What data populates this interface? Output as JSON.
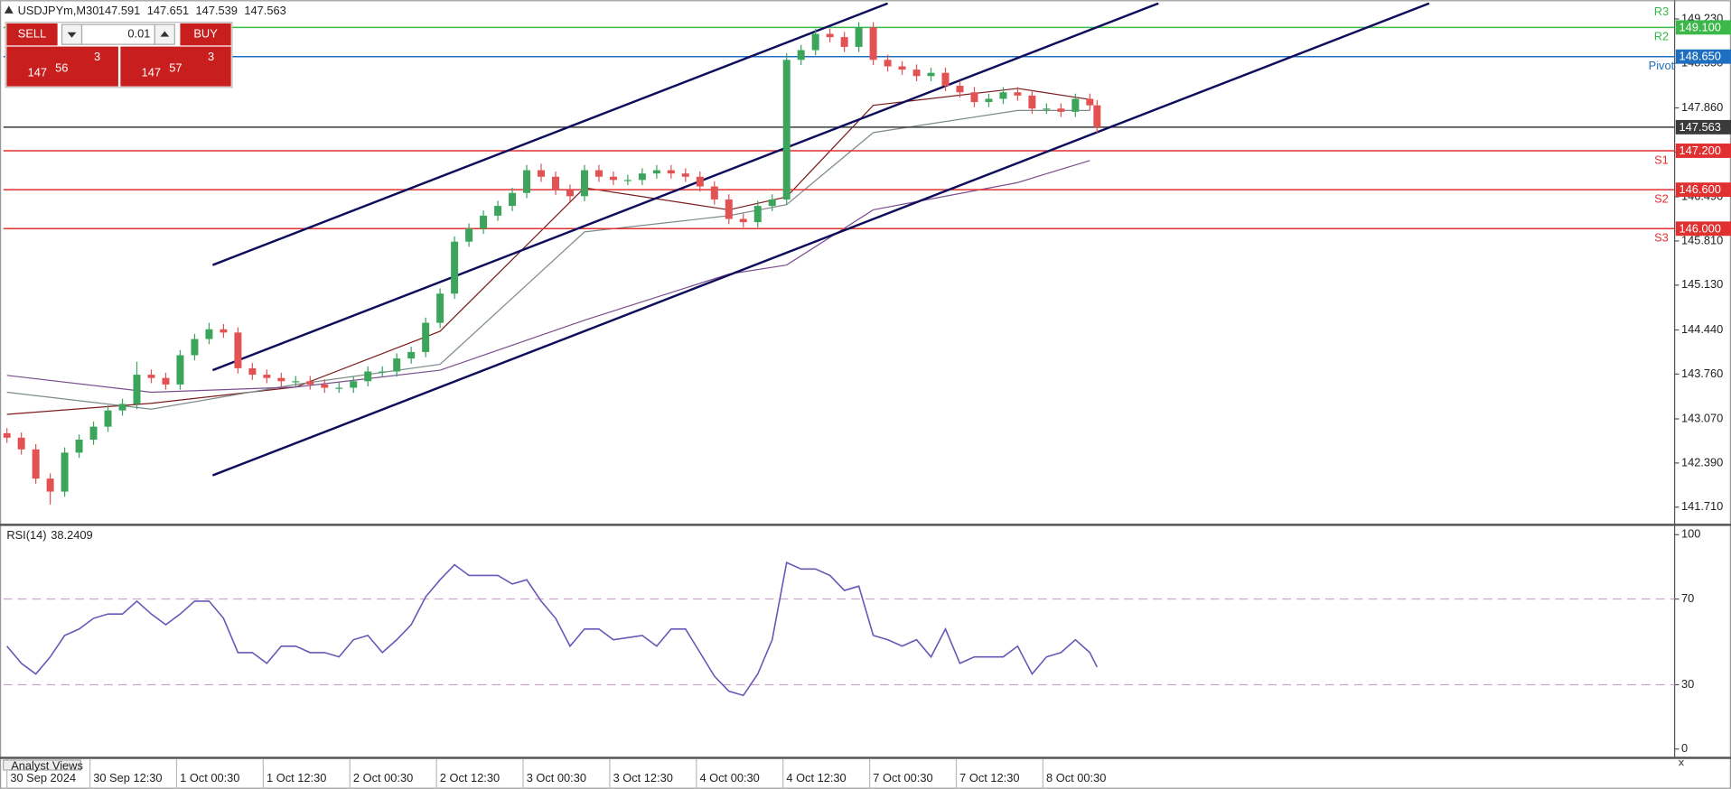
{
  "trade_panel": {
    "sell": "SELL",
    "buy": "BUY",
    "lot": "0.01",
    "sell_price": [
      "147",
      "56",
      "3"
    ],
    "buy_price": [
      "147",
      "57",
      "3"
    ]
  },
  "bottom_tab": "Analyst Views",
  "chart_data": [
    {
      "type": "candlestick",
      "title": "USDJPYm,M30",
      "readout": [
        147.591,
        147.651,
        147.539,
        147.563
      ],
      "up_color": "#3aa55b",
      "down_color": "#e25252",
      "grid": false,
      "x": [
        0,
        4,
        8,
        12,
        16,
        20,
        24,
        28,
        32,
        36,
        40,
        44,
        48,
        52,
        56,
        60,
        64,
        68,
        72,
        76,
        80,
        84,
        88,
        92,
        96,
        100,
        104,
        108,
        112,
        116,
        120,
        124,
        128,
        132,
        136,
        140,
        144,
        148,
        152,
        156,
        160,
        164,
        168,
        172,
        176,
        180,
        184,
        188,
        192,
        196,
        200,
        204,
        208,
        212,
        216,
        220,
        224,
        228,
        232,
        236,
        240,
        244,
        248,
        252,
        256,
        260,
        264,
        268,
        272,
        276,
        280,
        284,
        288,
        292,
        296,
        300,
        302
      ],
      "open": [
        142.85,
        142.78,
        142.6,
        142.15,
        141.95,
        142.55,
        142.75,
        142.95,
        143.2,
        143.3,
        143.75,
        143.7,
        143.6,
        144.05,
        144.3,
        144.45,
        144.4,
        143.85,
        143.75,
        143.7,
        143.65,
        143.65,
        143.6,
        143.55,
        143.55,
        143.65,
        143.8,
        143.8,
        144.0,
        144.1,
        144.55,
        145.0,
        145.8,
        146.0,
        146.2,
        146.35,
        146.55,
        146.9,
        146.8,
        146.6,
        146.5,
        146.9,
        146.8,
        146.75,
        146.75,
        146.85,
        146.9,
        146.85,
        146.8,
        146.65,
        146.45,
        146.15,
        146.1,
        146.35,
        146.45,
        148.6,
        148.75,
        149.0,
        148.95,
        148.8,
        149.1,
        148.6,
        148.5,
        148.45,
        148.35,
        148.4,
        148.2,
        148.1,
        147.95,
        148.0,
        148.1,
        148.05,
        147.85,
        147.85,
        147.8,
        148.0,
        147.9
      ],
      "high": [
        142.93,
        142.86,
        142.68,
        142.23,
        142.63,
        142.83,
        143.03,
        143.28,
        143.38,
        143.95,
        143.83,
        143.78,
        144.13,
        144.38,
        144.55,
        144.53,
        144.48,
        143.93,
        143.83,
        143.78,
        143.73,
        143.73,
        143.68,
        143.63,
        143.73,
        143.88,
        143.88,
        144.08,
        144.18,
        144.63,
        145.08,
        145.88,
        146.08,
        146.28,
        146.43,
        146.63,
        146.98,
        147.0,
        146.88,
        146.68,
        146.98,
        146.98,
        146.88,
        146.83,
        146.93,
        146.98,
        146.98,
        146.93,
        146.88,
        146.73,
        146.53,
        146.23,
        146.43,
        146.53,
        148.7,
        148.83,
        149.08,
        149.08,
        149.03,
        149.18,
        149.18,
        148.68,
        148.58,
        148.53,
        148.48,
        148.48,
        148.28,
        148.18,
        148.08,
        148.18,
        148.18,
        148.13,
        147.93,
        147.93,
        148.08,
        148.08,
        147.98
      ],
      "low": [
        142.7,
        142.52,
        142.07,
        141.75,
        141.87,
        142.47,
        142.67,
        142.87,
        143.12,
        143.22,
        143.62,
        143.52,
        143.52,
        143.97,
        144.22,
        144.32,
        143.77,
        143.67,
        143.62,
        143.57,
        143.57,
        143.52,
        143.47,
        143.47,
        143.47,
        143.57,
        143.72,
        143.72,
        143.92,
        144.02,
        144.47,
        144.92,
        145.72,
        145.92,
        146.12,
        146.27,
        146.47,
        146.72,
        146.52,
        146.42,
        146.42,
        146.72,
        146.67,
        146.67,
        146.67,
        146.77,
        146.77,
        146.72,
        146.57,
        146.37,
        146.07,
        146.02,
        146.02,
        146.27,
        146.37,
        148.52,
        148.67,
        148.87,
        148.72,
        148.72,
        148.52,
        148.42,
        148.37,
        148.27,
        148.27,
        148.12,
        148.02,
        147.87,
        147.87,
        147.92,
        147.97,
        147.77,
        147.77,
        147.72,
        147.72,
        147.82,
        147.48
      ],
      "close": [
        142.78,
        142.6,
        142.15,
        141.95,
        142.55,
        142.75,
        142.95,
        143.2,
        143.3,
        143.75,
        143.7,
        143.6,
        144.05,
        144.3,
        144.45,
        144.4,
        143.85,
        143.75,
        143.7,
        143.65,
        143.65,
        143.6,
        143.55,
        143.55,
        143.65,
        143.8,
        143.8,
        144.0,
        144.1,
        144.55,
        145.0,
        145.8,
        146.0,
        146.2,
        146.35,
        146.55,
        146.9,
        146.8,
        146.6,
        146.5,
        146.9,
        146.8,
        146.75,
        146.75,
        146.85,
        146.9,
        146.85,
        146.8,
        146.65,
        146.45,
        146.15,
        146.1,
        146.35,
        146.45,
        148.6,
        148.75,
        149.0,
        148.95,
        148.8,
        149.1,
        148.6,
        148.5,
        148.45,
        148.35,
        148.4,
        148.2,
        148.1,
        147.95,
        148.0,
        148.1,
        148.05,
        147.85,
        147.85,
        147.8,
        148.0,
        147.9,
        147.563
      ],
      "ma_x": [
        0,
        40,
        80,
        120,
        160,
        200,
        216,
        240,
        280,
        300
      ],
      "moving_averages": [
        {
          "color": "#7b1c1c",
          "values": [
            143.14,
            143.31,
            143.56,
            144.42,
            146.63,
            146.29,
            146.49,
            147.9,
            148.16,
            147.99
          ]
        },
        {
          "color": "#7d8a8a",
          "values": [
            143.48,
            143.22,
            143.6,
            143.91,
            145.95,
            146.2,
            146.37,
            147.48,
            147.82,
            147.82
          ]
        },
        {
          "color": "#7a4f8f",
          "values": [
            143.74,
            143.48,
            143.56,
            143.82,
            144.59,
            145.3,
            145.44,
            146.29,
            146.71,
            147.05
          ]
        }
      ],
      "channels": [
        {
          "color": "#0d0d5c",
          "x": [
            57,
            244
          ],
          "values": [
            145.44,
            149.47
          ]
        },
        {
          "color": "#0d0d5c",
          "x": [
            57,
            319
          ],
          "values": [
            143.82,
            149.47
          ]
        },
        {
          "color": "#0d0d5c",
          "x": [
            57,
            394
          ],
          "values": [
            142.2,
            149.47
          ]
        }
      ],
      "level_top_label": "R3",
      "levels": [
        {
          "name": "R2",
          "price": {
            "value": 149.1,
            "label": "149.100"
          },
          "color": "#3cb84a"
        },
        {
          "name": "Pivot",
          "price": {
            "value": 148.65,
            "label": "148.650"
          },
          "color": "#1f6fc0"
        },
        {
          "price": 147.563,
          "color": "#3a3a3a"
        },
        {
          "name": "S1",
          "price": {
            "value": 147.2,
            "label": "147.200"
          },
          "color": "#e03030"
        },
        {
          "name": "S2",
          "price": {
            "value": 146.6,
            "label": "146.600"
          },
          "color": "#e03030"
        },
        {
          "name": "S3",
          "price": {
            "value": 146.0,
            "label": "146.000"
          },
          "color": "#e03030"
        }
      ],
      "xlim": [
        -1,
        462
      ],
      "xticks": [
        {
          "value": 0,
          "label": "30 Sep 2024"
        },
        {
          "value": 23,
          "label": "30 Sep 12:30"
        },
        {
          "value": 47,
          "label": "1 Oct 00:30"
        },
        {
          "value": 71,
          "label": "1 Oct 12:30"
        },
        {
          "value": 95,
          "label": "2 Oct 00:30"
        },
        {
          "value": 119,
          "label": "2 Oct 12:30"
        },
        {
          "value": 143,
          "label": "3 Oct 00:30"
        },
        {
          "value": 167,
          "label": "3 Oct 12:30"
        },
        {
          "value": 191,
          "label": "4 Oct 00:30"
        },
        {
          "value": 215,
          "label": "4 Oct 12:30"
        },
        {
          "value": 239,
          "label": "7 Oct 00:30"
        },
        {
          "value": 263,
          "label": "7 Oct 12:30"
        },
        {
          "value": 287,
          "label": "8 Oct 00:30"
        }
      ],
      "ylim": [
        141.455,
        149.485
      ],
      "yticks": [
        {
          "value": 149.23,
          "label": "149.230"
        },
        {
          "value": 148.55,
          "label": "148.550"
        },
        {
          "value": 147.86,
          "label": "147.860"
        },
        {
          "value": 147.18,
          "label": "147.180"
        },
        {
          "value": 146.49,
          "label": "146.490"
        },
        {
          "value": 145.81,
          "label": "145.810"
        },
        {
          "value": 145.13,
          "label": "145.130"
        },
        {
          "value": 144.44,
          "label": "144.440"
        },
        {
          "value": 143.76,
          "label": "143.760"
        },
        {
          "value": 143.07,
          "label": "143.070"
        },
        {
          "value": 142.39,
          "label": "142.390"
        },
        {
          "value": 141.71,
          "label": "141.710"
        }
      ]
    },
    {
      "type": "line",
      "title": "RSI(14)",
      "current_value": 38.2409,
      "color": "#6a55b8",
      "x": [
        0,
        4,
        8,
        12,
        16,
        20,
        24,
        28,
        32,
        36,
        40,
        44,
        48,
        52,
        56,
        60,
        64,
        68,
        72,
        76,
        80,
        84,
        88,
        92,
        96,
        100,
        104,
        108,
        112,
        116,
        120,
        124,
        128,
        132,
        136,
        140,
        144,
        148,
        152,
        156,
        160,
        164,
        168,
        172,
        176,
        180,
        184,
        188,
        192,
        196,
        200,
        204,
        208,
        212,
        216,
        220,
        224,
        228,
        232,
        236,
        240,
        244,
        248,
        252,
        256,
        260,
        264,
        268,
        272,
        276,
        280,
        284,
        288,
        292,
        296,
        300,
        302
      ],
      "values": [
        48,
        40,
        35,
        43,
        53,
        56,
        61,
        63,
        63,
        69,
        63,
        58,
        63,
        69,
        69,
        61,
        45,
        45,
        40,
        48,
        48,
        45,
        45,
        43,
        51,
        53,
        45,
        51,
        58,
        71,
        79,
        86,
        81,
        81,
        81,
        77,
        79,
        69,
        61,
        48,
        56,
        56,
        51,
        52,
        53,
        48,
        56,
        56,
        45,
        34,
        27,
        25,
        35,
        51,
        87,
        84,
        84,
        81,
        74,
        76,
        53,
        51,
        48,
        51,
        43,
        56,
        40,
        43,
        43,
        43,
        48,
        35,
        43,
        45,
        51,
        45,
        38.24
      ],
      "levels": [
        30,
        70
      ],
      "level_color": "#c9a6c9",
      "xlim": [
        -1,
        462
      ],
      "ylim": [
        -3.1,
        104.1
      ],
      "yticks": [
        0,
        30,
        70,
        100
      ]
    }
  ]
}
